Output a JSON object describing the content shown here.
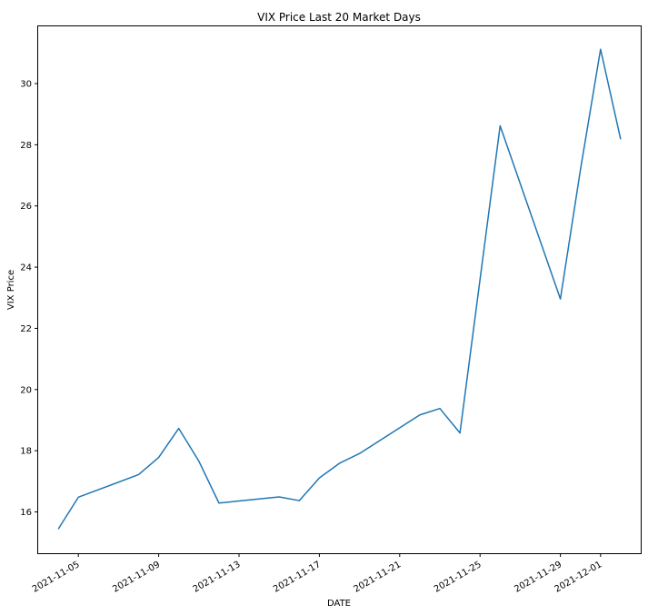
{
  "chart_data": {
    "type": "line",
    "title": "VIX Price Last 20 Market Days",
    "xlabel": "DATE",
    "ylabel": "VIX Price",
    "grid": false,
    "legend": "none",
    "series": [
      {
        "color": "#1f77b4",
        "x": [
          "2021-11-04",
          "2021-11-05",
          "2021-11-08",
          "2021-11-09",
          "2021-11-10",
          "2021-11-11",
          "2021-11-12",
          "2021-11-15",
          "2021-11-16",
          "2021-11-17",
          "2021-11-18",
          "2021-11-19",
          "2021-11-22",
          "2021-11-23",
          "2021-11-24",
          "2021-11-26",
          "2021-11-29",
          "2021-11-30",
          "2021-12-01",
          "2021-12-02"
        ],
        "y": [
          15.44,
          16.48,
          17.22,
          17.78,
          18.73,
          17.66,
          16.29,
          16.49,
          16.37,
          17.11,
          17.59,
          17.91,
          19.17,
          19.38,
          18.58,
          28.62,
          22.96,
          27.19,
          31.12,
          28.18
        ]
      }
    ],
    "xticks": [
      "2021-11-05",
      "2021-11-09",
      "2021-11-13",
      "2021-11-17",
      "2021-11-21",
      "2021-11-25",
      "2021-11-29",
      "2021-12-01"
    ],
    "yticks": [
      16,
      18,
      20,
      22,
      24,
      26,
      28,
      30
    ],
    "xlim": [
      "2021-11-03",
      "2021-12-03"
    ],
    "ylim": [
      14.65,
      31.9
    ]
  }
}
